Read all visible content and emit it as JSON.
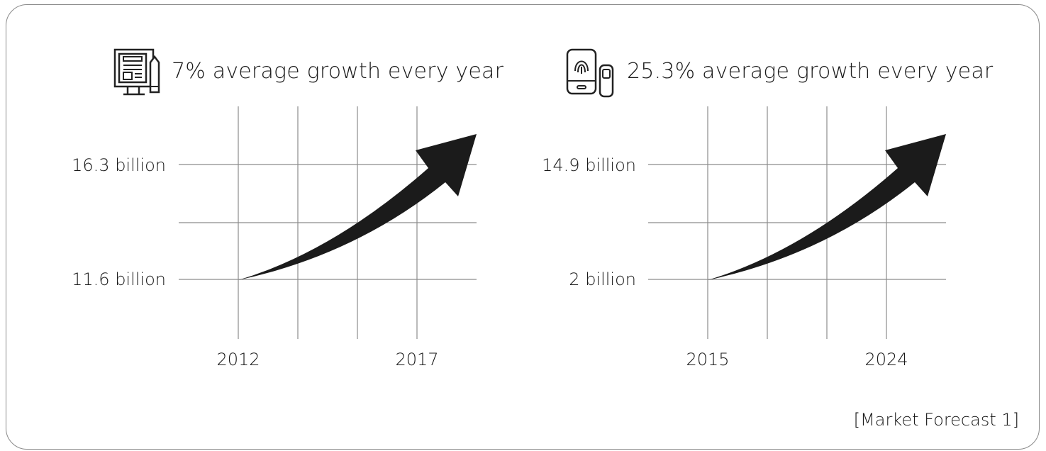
{
  "caption": "[Market Forecast 1]",
  "colors": {
    "grid": "#8c8c8c",
    "arrow": "#1b1b1b",
    "frame": "#8a8a8a"
  },
  "chart_data": [
    {
      "type": "line",
      "title": "7% average growth every year",
      "icon": "desktop-document-pen-icon",
      "x": [
        "2012",
        "2017"
      ],
      "y_tick_labels": [
        "11.6 billion",
        "16.3 billion"
      ],
      "values": [
        11.6,
        16.3
      ],
      "x_tick_labels": [
        "2012",
        "2017"
      ],
      "series": [
        {
          "values": [
            11.6,
            16.3
          ]
        }
      ],
      "grid": true,
      "marker": "arrow"
    },
    {
      "type": "line",
      "title": "25.3% average growth every year",
      "icon": "phone-fingerprint-icon",
      "x": [
        "2015",
        "2024"
      ],
      "y_tick_labels": [
        "2 billion",
        "14.9 billion"
      ],
      "values": [
        2,
        14.9
      ],
      "x_tick_labels": [
        "2015",
        "2024"
      ],
      "series": [
        {
          "values": [
            2,
            14.9
          ]
        }
      ],
      "grid": true,
      "marker": "arrow"
    }
  ]
}
